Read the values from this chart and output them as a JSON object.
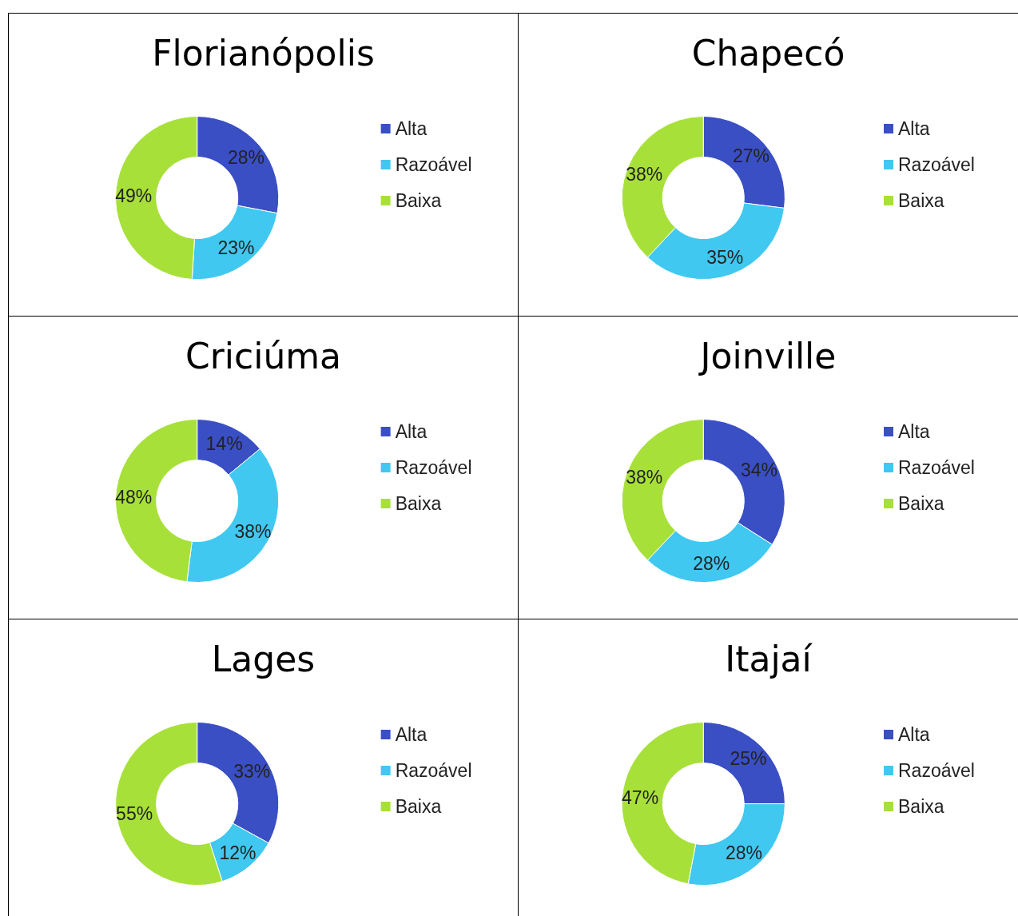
{
  "chart_data": [
    {
      "type": "donut",
      "title": "Florianópolis",
      "categories": [
        "Alta",
        "Razoável",
        "Baixa"
      ],
      "values": [
        28,
        23,
        49
      ],
      "value_labels": [
        "28%",
        "23%",
        "49%"
      ],
      "colors": [
        "#3a4fc4",
        "#40c8f0",
        "#a8e03a"
      ],
      "legend": "right"
    },
    {
      "type": "donut",
      "title": "Chapecó",
      "categories": [
        "Alta",
        "Razoável",
        "Baixa"
      ],
      "values": [
        27,
        35,
        38
      ],
      "value_labels": [
        "27%",
        "35%",
        "38%"
      ],
      "colors": [
        "#3a4fc4",
        "#40c8f0",
        "#a8e03a"
      ],
      "legend": "right"
    },
    {
      "type": "donut",
      "title": "Criciúma",
      "categories": [
        "Alta",
        "Razoável",
        "Baixa"
      ],
      "values": [
        14,
        38,
        48
      ],
      "value_labels": [
        "14%",
        "38%",
        "48%"
      ],
      "colors": [
        "#3a4fc4",
        "#40c8f0",
        "#a8e03a"
      ],
      "legend": "right"
    },
    {
      "type": "donut",
      "title": "Joinville",
      "categories": [
        "Alta",
        "Razoável",
        "Baixa"
      ],
      "values": [
        34,
        28,
        38
      ],
      "value_labels": [
        "34%",
        "28%",
        "38%"
      ],
      "colors": [
        "#3a4fc4",
        "#40c8f0",
        "#a8e03a"
      ],
      "legend": "right"
    },
    {
      "type": "donut",
      "title": "Lages",
      "categories": [
        "Alta",
        "Razoável",
        "Baixa"
      ],
      "values": [
        33,
        12,
        55
      ],
      "value_labels": [
        "33%",
        "12%",
        "55%"
      ],
      "colors": [
        "#3a4fc4",
        "#40c8f0",
        "#a8e03a"
      ],
      "legend": "right"
    },
    {
      "type": "donut",
      "title": "Itajaí",
      "categories": [
        "Alta",
        "Razoável",
        "Baixa"
      ],
      "values": [
        25,
        28,
        47
      ],
      "value_labels": [
        "25%",
        "28%",
        "47%"
      ],
      "colors": [
        "#3a4fc4",
        "#40c8f0",
        "#a8e03a"
      ],
      "legend": "right"
    }
  ]
}
